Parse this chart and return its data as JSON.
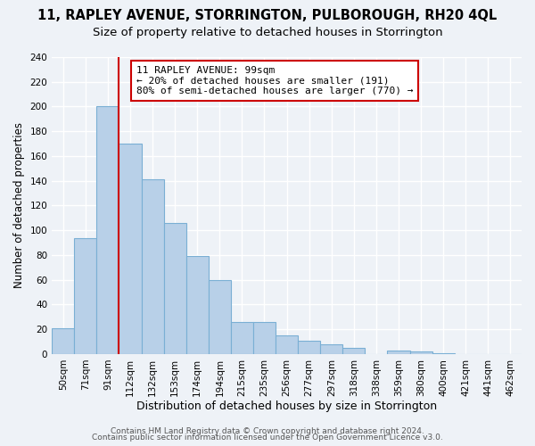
{
  "title1": "11, RAPLEY AVENUE, STORRINGTON, PULBOROUGH, RH20 4QL",
  "title2": "Size of property relative to detached houses in Storrington",
  "xlabel": "Distribution of detached houses by size in Storrington",
  "ylabel": "Number of detached properties",
  "categories": [
    "50sqm",
    "71sqm",
    "91sqm",
    "112sqm",
    "132sqm",
    "153sqm",
    "174sqm",
    "194sqm",
    "215sqm",
    "235sqm",
    "256sqm",
    "277sqm",
    "297sqm",
    "318sqm",
    "338sqm",
    "359sqm",
    "380sqm",
    "400sqm",
    "421sqm",
    "441sqm",
    "462sqm"
  ],
  "values": [
    21,
    94,
    200,
    170,
    141,
    106,
    79,
    60,
    26,
    26,
    15,
    11,
    8,
    5,
    0,
    3,
    2,
    1,
    0,
    0,
    0
  ],
  "bar_color": "#b8d0e8",
  "bar_edge_color": "#7aafd4",
  "vline_x_index": 2,
  "vline_color": "#cc0000",
  "annotation_text": "11 RAPLEY AVENUE: 99sqm\n← 20% of detached houses are smaller (191)\n80% of semi-detached houses are larger (770) →",
  "annotation_box_color": "#ffffff",
  "annotation_box_edge": "#cc0000",
  "ylim": [
    0,
    240
  ],
  "yticks": [
    0,
    20,
    40,
    60,
    80,
    100,
    120,
    140,
    160,
    180,
    200,
    220,
    240
  ],
  "footer1": "Contains HM Land Registry data © Crown copyright and database right 2024.",
  "footer2": "Contains public sector information licensed under the Open Government Licence v3.0.",
  "bg_color": "#eef2f7",
  "grid_color": "#ffffff",
  "title1_fontsize": 10.5,
  "title2_fontsize": 9.5,
  "xlabel_fontsize": 9,
  "ylabel_fontsize": 8.5,
  "tick_fontsize": 7.5,
  "footer_fontsize": 6.5,
  "annot_fontsize": 8.0
}
